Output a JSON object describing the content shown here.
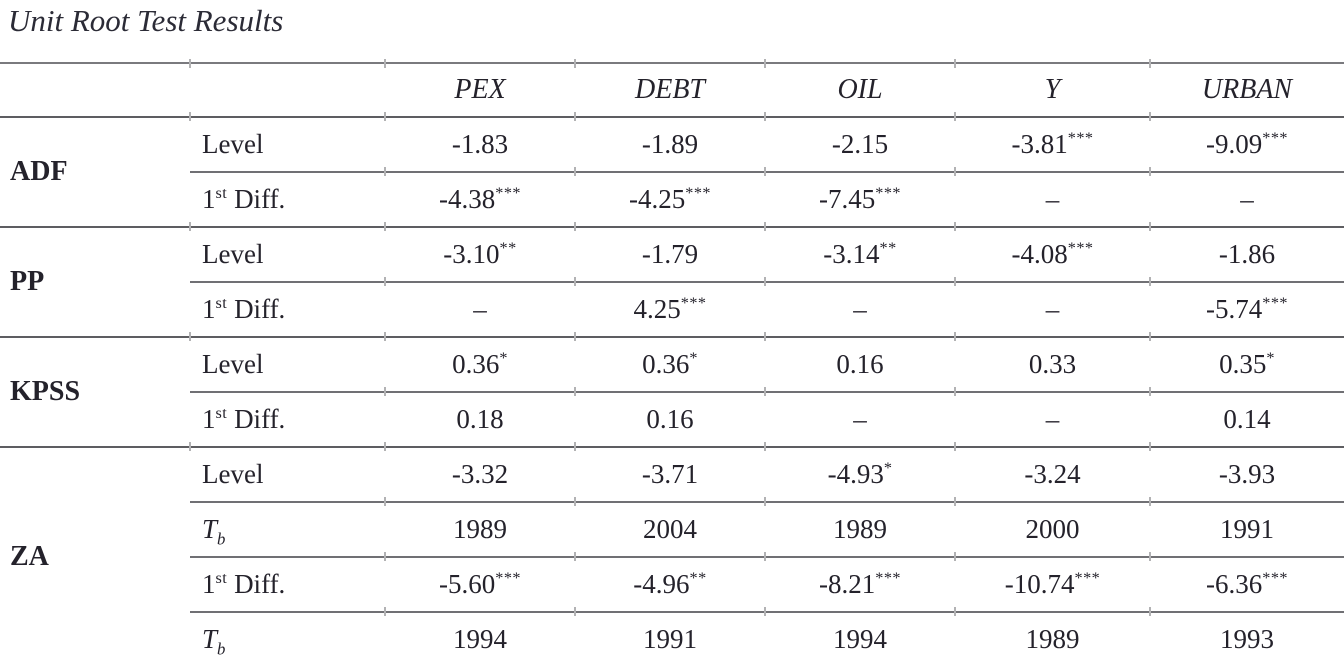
{
  "title": "Unit Root Test Results",
  "table": {
    "columns": [
      "PEX",
      "DEBT",
      "OIL",
      "Y",
      "URBAN"
    ],
    "groups": [
      {
        "name": "ADF",
        "rows": [
          {
            "label": "Level",
            "values": [
              "-1.83",
              "-1.89",
              "-2.15",
              "-3.81***",
              "-9.09***"
            ]
          },
          {
            "label": "1st Diff.",
            "values": [
              "-4.38***",
              "-4.25***",
              "-7.45***",
              "–",
              "–"
            ]
          }
        ]
      },
      {
        "name": "PP",
        "rows": [
          {
            "label": "Level",
            "values": [
              "-3.10**",
              "-1.79",
              "-3.14**",
              "-4.08***",
              "-1.86"
            ]
          },
          {
            "label": "1st Diff.",
            "values": [
              "–",
              "4.25***",
              "–",
              "–",
              "-5.74***"
            ]
          }
        ]
      },
      {
        "name": "KPSS",
        "rows": [
          {
            "label": "Level",
            "values": [
              "0.36*",
              "0.36*",
              "0.16",
              "0.33",
              "0.35*"
            ]
          },
          {
            "label": "1st Diff.",
            "values": [
              "0.18",
              "0.16",
              "–",
              "–",
              "0.14"
            ]
          }
        ]
      },
      {
        "name": "ZA",
        "rows": [
          {
            "label": "Level",
            "values": [
              "-3.32",
              "-3.71",
              "-4.93*",
              "-3.24",
              "-3.93"
            ]
          },
          {
            "label": "T_b",
            "values": [
              "1989",
              "2004",
              "1989",
              "2000",
              "1991"
            ]
          },
          {
            "label": "1st Diff.",
            "values": [
              "-5.60***",
              "-4.96**",
              "-8.21***",
              "-10.74***",
              "-6.36***"
            ]
          },
          {
            "label": "T_b",
            "values": [
              "1994",
              "1991",
              "1994",
              "1989",
              "1993"
            ]
          }
        ]
      }
    ]
  },
  "colors": {
    "text": "#24222b",
    "title_text": "#2b2b36",
    "rule_dark": "#5d5d61",
    "rule_light": "#707074",
    "rule_outer": "#7a7a7e",
    "tick": "#b2b2b4",
    "background": "#ffffff"
  }
}
